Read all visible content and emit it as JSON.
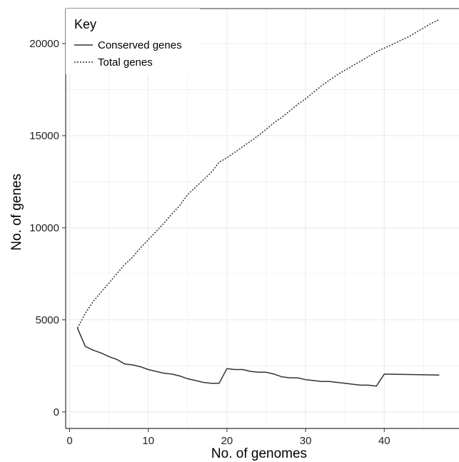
{
  "chart_data": {
    "type": "line",
    "title": "",
    "xlabel": "No. of genomes",
    "ylabel": "No. of genes",
    "xlim": [
      -0.5,
      49.5
    ],
    "ylim": [
      -900,
      21900
    ],
    "x_ticks": [
      0,
      10,
      20,
      30,
      40
    ],
    "y_ticks": [
      0,
      5000,
      10000,
      15000,
      20000
    ],
    "grid": true,
    "legend": {
      "title": "Key",
      "position": "top-left"
    },
    "series": [
      {
        "name": "Conserved genes",
        "style": "solid",
        "x": [
          1,
          2,
          3,
          4,
          5,
          6,
          7,
          8,
          9,
          10,
          11,
          12,
          13,
          14,
          15,
          16,
          17,
          18,
          19,
          20,
          21,
          22,
          23,
          24,
          25,
          26,
          27,
          28,
          29,
          30,
          31,
          32,
          33,
          34,
          35,
          36,
          37,
          38,
          39,
          40,
          47
        ],
        "values": [
          4550,
          3550,
          3350,
          3200,
          3000,
          2850,
          2600,
          2550,
          2450,
          2300,
          2200,
          2100,
          2050,
          1950,
          1800,
          1700,
          1600,
          1550,
          1550,
          2350,
          2300,
          2300,
          2200,
          2150,
          2150,
          2050,
          1900,
          1850,
          1850,
          1750,
          1700,
          1650,
          1650,
          1600,
          1550,
          1500,
          1450,
          1450,
          1400,
          2050,
          2000
        ]
      },
      {
        "name": "Total genes",
        "style": "dotted",
        "x": [
          1,
          2,
          3,
          4,
          5,
          6,
          7,
          8,
          9,
          10,
          11,
          12,
          13,
          14,
          15,
          16,
          17,
          18,
          19,
          20,
          21,
          22,
          23,
          24,
          25,
          26,
          27,
          28,
          29,
          30,
          31,
          32,
          33,
          34,
          35,
          36,
          37,
          38,
          39,
          40,
          41,
          42,
          43,
          44,
          45,
          46,
          47
        ],
        "values": [
          4550,
          5350,
          6000,
          6500,
          7000,
          7500,
          8000,
          8400,
          8900,
          9350,
          9800,
          10250,
          10750,
          11200,
          11800,
          12200,
          12600,
          13000,
          13550,
          13800,
          14100,
          14400,
          14700,
          15000,
          15350,
          15700,
          16000,
          16350,
          16700,
          17000,
          17350,
          17700,
          18000,
          18300,
          18550,
          18800,
          19050,
          19300,
          19550,
          19750,
          19950,
          20150,
          20350,
          20600,
          20850,
          21100,
          21300
        ]
      }
    ],
    "colors": {
      "line": "#333333",
      "grid": "#ebebeb",
      "axis": "#333333"
    }
  }
}
